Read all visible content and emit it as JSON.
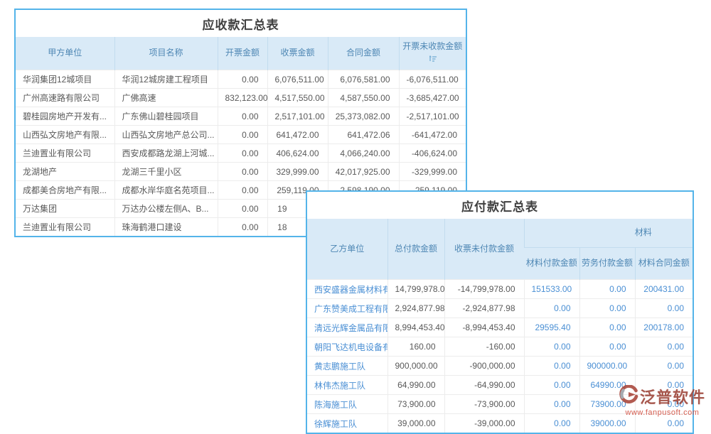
{
  "receivable_table": {
    "title": "应收款汇总表",
    "columns": [
      "甲方单位",
      "项目名称",
      "开票金额",
      "收票金额",
      "合同金额",
      "开票未收款金额"
    ],
    "sort_icon": "sort-amount-icon",
    "rows": [
      [
        "华润集团12城项目",
        "华润12城房建工程项目",
        "0.00",
        "6,076,511.00",
        "6,076,581.00",
        "-6,076,511.00"
      ],
      [
        "广州高速路有限公司",
        "广佛高速",
        "832,123.00",
        "4,517,550.00",
        "4,587,550.00",
        "-3,685,427.00"
      ],
      [
        "碧桂园房地产开发有...",
        "广东佛山碧桂园项目",
        "0.00",
        "2,517,101.00",
        "25,373,082.00",
        "-2,517,101.00"
      ],
      [
        "山西弘文房地产有限...",
        "山西弘文房地产总公司...",
        "0.00",
        "641,472.00",
        "641,472.06",
        "-641,472.00"
      ],
      [
        "兰迪置业有限公司",
        "西安成都路龙湖上河城...",
        "0.00",
        "406,624.00",
        "4,066,240.00",
        "-406,624.00"
      ],
      [
        "龙湖地产",
        "龙湖三千里小区",
        "0.00",
        "329,999.00",
        "42,017,925.00",
        "-329,999.00"
      ],
      [
        "成都美合房地产有限...",
        "成都水岸华庭名苑项目...",
        "0.00",
        "259,119.00",
        "2,598,190.00",
        "-259,119.00"
      ],
      [
        "万达集团",
        "万达办公楼左侧A、B...",
        "0.00",
        "19",
        "",
        ""
      ],
      [
        "兰迪置业有限公司",
        "珠海鹤港口建设",
        "0.00",
        "18",
        "",
        ""
      ]
    ]
  },
  "payable_table": {
    "title": "应付款汇总表",
    "columns": [
      "乙方单位",
      "总付款金额",
      "收票未付款金额"
    ],
    "group_header": "材料",
    "material_columns": [
      "材料付款金额",
      "劳务付款金额",
      "材料合同金额"
    ],
    "rows": [
      [
        "西安盛器金属材料有",
        "14,799,978.00",
        "-14,799,978.00",
        "151533.00",
        "0.00",
        "200431.00"
      ],
      [
        "广东赞美成工程有限",
        "2,924,877.98",
        "-2,924,877.98",
        "0.00",
        "0.00",
        "0.00"
      ],
      [
        "清远光辉金属品有限",
        "8,994,453.40",
        "-8,994,453.40",
        "29595.40",
        "0.00",
        "200178.00"
      ],
      [
        "朝阳飞达机电设备有",
        "160.00",
        "-160.00",
        "0.00",
        "0.00",
        "0.00"
      ],
      [
        "黄志鹏施工队",
        "900,000.00",
        "-900,000.00",
        "0.00",
        "900000.00",
        "0.00"
      ],
      [
        "林伟杰施工队",
        "64,990.00",
        "-64,990.00",
        "0.00",
        "64990.00",
        "0.00"
      ],
      [
        "陈海施工队",
        "73,900.00",
        "-73,900.00",
        "0.00",
        "73900.00",
        "0.00"
      ],
      [
        "徐辉施工队",
        "39,000.00",
        "-39,000.00",
        "0.00",
        "39000.00",
        "0.00"
      ]
    ]
  },
  "watermark": {
    "brand": "泛普软件",
    "url": "www.fanpusoft.com"
  },
  "colors": {
    "panel_border": "#54b4e9",
    "header_bg": "#d9eaf7",
    "header_text": "#4e87b4",
    "body_text": "#595959",
    "link_blue": "#4a8fd4",
    "watermark_red": "#9c4236"
  }
}
